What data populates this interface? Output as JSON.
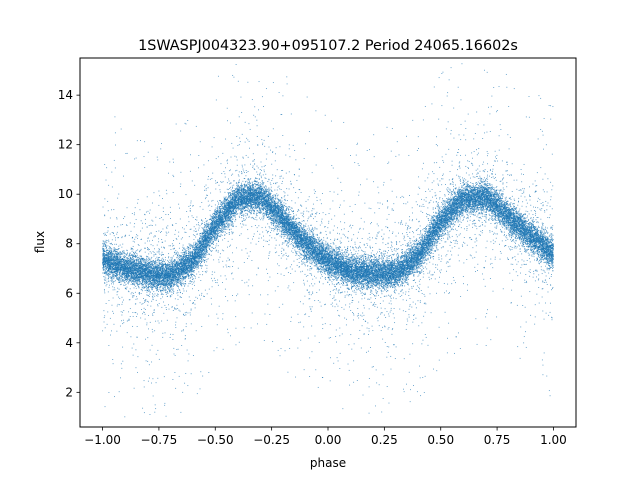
{
  "chart_data": {
    "type": "scatter",
    "title": "1SWASPJ004323.90+095107.2 Period 24065.16602s",
    "xlabel": "phase",
    "ylabel": "flux",
    "xlim": [
      -1.1,
      1.1
    ],
    "ylim": [
      0.6,
      15.5
    ],
    "x_ticks": [
      -1.0,
      -0.75,
      -0.5,
      -0.25,
      0.0,
      0.25,
      0.5,
      0.75,
      1.0
    ],
    "x_tick_labels": [
      "−1.00",
      "−0.75",
      "−0.50",
      "−0.25",
      "0.00",
      "0.25",
      "0.50",
      "0.75",
      "1.00"
    ],
    "y_ticks": [
      2,
      4,
      6,
      8,
      10,
      12,
      14
    ],
    "y_tick_labels": [
      "2",
      "4",
      "6",
      "8",
      "10",
      "12",
      "14"
    ],
    "grid": false,
    "legend": "none",
    "point_color": "#1f77b4",
    "phase_range": [
      -1.0,
      1.0
    ],
    "light_curve": {
      "phase": [
        -1.0,
        -0.9,
        -0.8,
        -0.7,
        -0.6,
        -0.5,
        -0.4,
        -0.3,
        -0.2,
        -0.1,
        0.0,
        0.1,
        0.2,
        0.3,
        0.4,
        0.5,
        0.6,
        0.7,
        0.8,
        0.9,
        1.0
      ],
      "flux": [
        7.4,
        7.0,
        6.8,
        6.7,
        7.3,
        8.7,
        9.8,
        9.9,
        9.0,
        8.0,
        7.3,
        6.9,
        6.8,
        6.8,
        7.5,
        8.9,
        9.8,
        9.9,
        9.1,
        8.3,
        7.6
      ]
    },
    "band_half_width": 0.55,
    "approx_num_points": 30000
  }
}
